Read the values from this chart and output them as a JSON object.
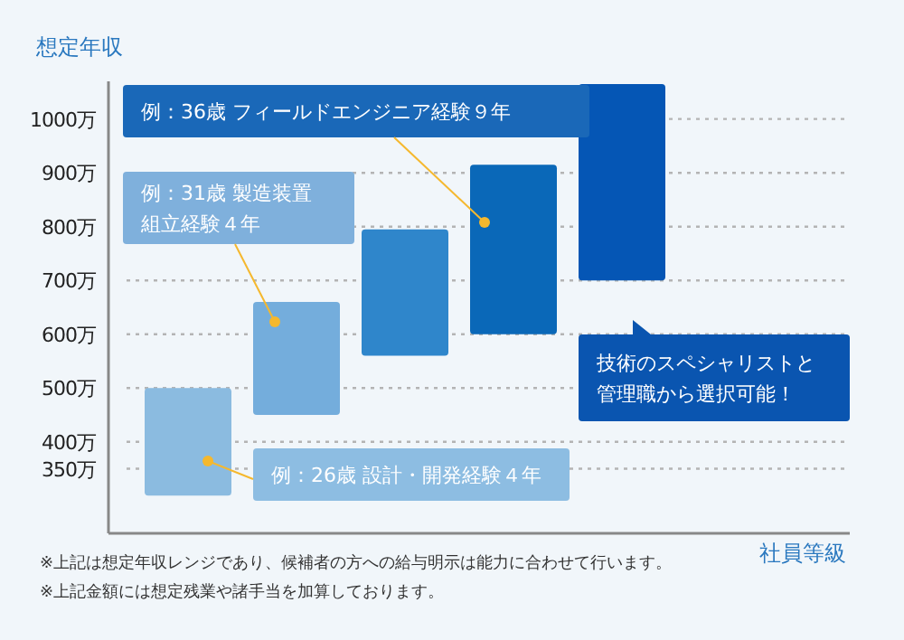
{
  "chart_data": {
    "type": "bar",
    "ylabel": "想定年収",
    "categories": [
      null,
      null,
      null,
      null,
      null
    ],
    "base": [
      300,
      450,
      560,
      600,
      700
    ],
    "values": [
      200,
      210,
      235,
      315,
      365
    ],
    "colors": [
      "#8bbbe0",
      "#74addc",
      "#2f86cb",
      "#0a68b8",
      "#0556b5"
    ],
    "ylim": [
      230,
      1070
    ],
    "yticks": [
      {
        "value": 350,
        "label": "350万"
      },
      {
        "value": 400,
        "label": "400万"
      },
      {
        "value": 500,
        "label": "500万"
      },
      {
        "value": 600,
        "label": "600万"
      },
      {
        "value": 700,
        "label": "700万"
      },
      {
        "value": 800,
        "label": "800万"
      },
      {
        "value": 900,
        "label": "900万"
      },
      {
        "value": 1000,
        "label": "1000万"
      }
    ],
    "grid": "y",
    "annotations": [
      "例：36歳 フィールドエンジニア経験９年",
      "例：31歳 製造装置組立経験４年",
      "例：26歳 設計・開発経験４年",
      "技術のスペシャリストと管理職から選択可能！",
      "社員等級",
      "※上記は想定年収レンジであり、候補者の方への給与明示は能力に合わせて行います。",
      "※上記金額には想定残業や諸手当を加算しております。"
    ]
  }
}
